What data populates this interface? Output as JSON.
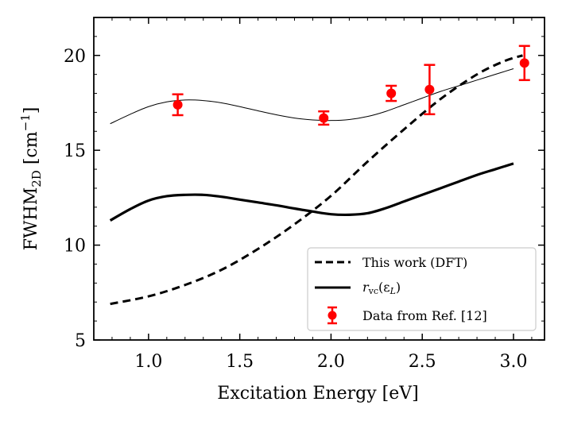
{
  "chart_data": {
    "type": "line",
    "title": "",
    "xlabel": "Excitation Energy [eV]",
    "ylabel": {
      "main": "FWHM",
      "sub": "2D",
      "unit_open": " [cm",
      "unit_sup": "−1",
      "unit_close": "]"
    },
    "xlim": [
      0.7,
      3.17
    ],
    "ylim": [
      5,
      22
    ],
    "xticks": [
      1.0,
      1.5,
      2.0,
      2.5,
      3.0
    ],
    "xtick_labels": [
      "1.0",
      "1.5",
      "2.0",
      "2.5",
      "3.0"
    ],
    "yticks": [
      5,
      10,
      15,
      20
    ],
    "ytick_labels": [
      "5",
      "10",
      "15",
      "20"
    ],
    "legend_position": "lower-right",
    "series": [
      {
        "name": "This work (DFT)",
        "style": "dashed",
        "color": "#000000",
        "x": [
          0.79,
          1.0,
          1.2,
          1.4,
          1.6,
          1.8,
          2.0,
          2.2,
          2.4,
          2.6,
          2.8,
          2.95,
          3.05
        ],
        "y": [
          6.9,
          7.3,
          7.9,
          8.7,
          9.8,
          11.1,
          12.6,
          14.4,
          16.1,
          17.7,
          19.0,
          19.7,
          20.0
        ]
      },
      {
        "name": "r_vc(ε_L)",
        "legend_label": {
          "italic": "r",
          "sub": "vc",
          "rest": "(ε",
          "sub2": "L",
          "close": ")"
        },
        "style": "solid-thick",
        "color": "#000000",
        "x": [
          0.79,
          0.9,
          1.0,
          1.1,
          1.2,
          1.3,
          1.4,
          1.5,
          1.6,
          1.7,
          1.8,
          1.9,
          2.0,
          2.1,
          2.2,
          2.3,
          2.4,
          2.5,
          2.6,
          2.7,
          2.8,
          2.9,
          3.0
        ],
        "y": [
          11.3,
          11.9,
          12.35,
          12.58,
          12.65,
          12.65,
          12.55,
          12.4,
          12.25,
          12.1,
          11.93,
          11.77,
          11.63,
          11.6,
          11.68,
          11.95,
          12.3,
          12.65,
          13.0,
          13.35,
          13.7,
          14.0,
          14.3
        ]
      },
      {
        "name": "fit (thin line)",
        "style": "solid-thin",
        "color": "#000000",
        "in_legend": false,
        "x": [
          0.79,
          0.9,
          1.0,
          1.1,
          1.2,
          1.3,
          1.4,
          1.5,
          1.6,
          1.7,
          1.8,
          1.9,
          2.0,
          2.1,
          2.2,
          2.3,
          2.4,
          2.5,
          2.6,
          2.7,
          2.8,
          2.9,
          3.0
        ],
        "y": [
          16.4,
          16.9,
          17.3,
          17.55,
          17.65,
          17.62,
          17.5,
          17.3,
          17.08,
          16.87,
          16.7,
          16.6,
          16.57,
          16.62,
          16.78,
          17.05,
          17.4,
          17.75,
          18.1,
          18.4,
          18.7,
          19.0,
          19.3
        ]
      },
      {
        "name": "Data from Ref. [12]",
        "style": "errorbar-markers",
        "color": "#ff0000",
        "x": [
          1.16,
          1.96,
          2.33,
          2.54,
          3.06
        ],
        "y": [
          17.4,
          16.7,
          18.0,
          18.2,
          19.6
        ],
        "yerr": [
          0.55,
          0.35,
          0.4,
          1.3,
          0.9
        ]
      }
    ]
  }
}
